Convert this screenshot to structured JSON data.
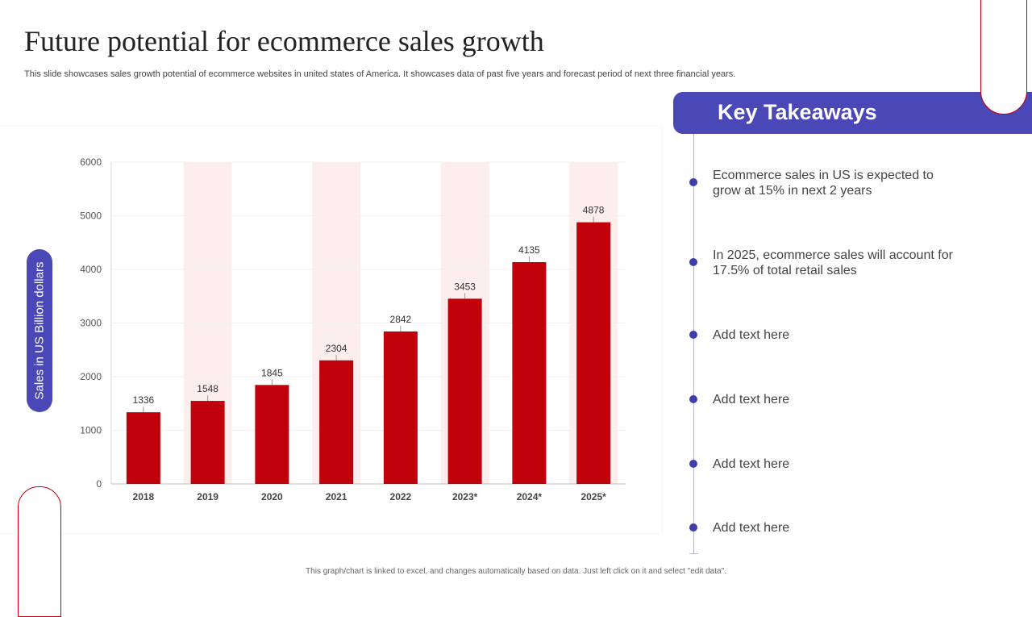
{
  "slide": {
    "title": "Future potential for ecommerce sales growth",
    "subtitle": "This slide showcases sales growth potential of ecommerce websites in united states of America. It showcases data of past five years and forecast period of next three financial years.",
    "footer": "This graph/chart is linked to excel, and changes automatically based on data. Just left click on it and select \"edit data\"."
  },
  "colors": {
    "bar": "#c0000a",
    "highlight_band": "#fdeeee",
    "accent": "#4a47b6",
    "dot": "#3e3ea8"
  },
  "chart_data": {
    "type": "bar",
    "title": "",
    "xlabel": "",
    "ylabel": "Sales in US Billion dollars",
    "categories": [
      "2018",
      "2019",
      "2020",
      "2021",
      "2022",
      "2023*",
      "2024*",
      "2025*"
    ],
    "values": [
      1336,
      1548,
      1845,
      2304,
      2842,
      3453,
      4135,
      4878
    ],
    "highlighted_categories": [
      "2019",
      "2021",
      "2023*",
      "2025*"
    ],
    "ylim": [
      0,
      6000
    ],
    "yticks": [
      0,
      1000,
      2000,
      3000,
      4000,
      5000,
      6000
    ],
    "data_labels": true,
    "grid": true
  },
  "takeaways": {
    "title": "Key Takeaways",
    "items": [
      "Ecommerce sales in US is expected to grow at 15% in next 2 years",
      "In 2025, ecommerce sales will account for 17.5% of total retail sales",
      "Add text here",
      "Add text here",
      "Add text here",
      "Add text here"
    ]
  }
}
